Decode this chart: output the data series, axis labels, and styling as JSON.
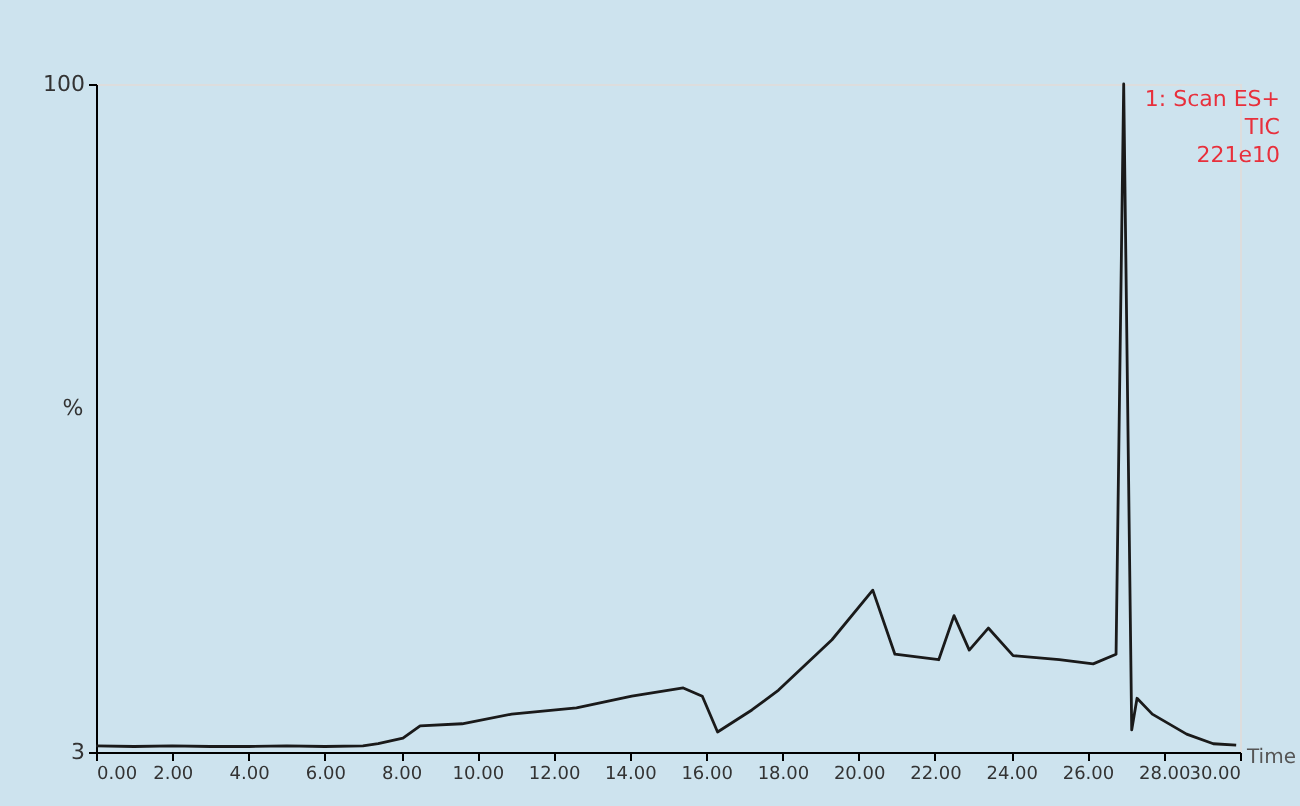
{
  "chart_data": {
    "type": "line",
    "xlabel": "Time",
    "ylabel": "%",
    "annotations": [
      "1: Scan ES+\nTIC\n221e10"
    ],
    "x": [
      0,
      1,
      2,
      3,
      4,
      5,
      6,
      7,
      7.4,
      8.05,
      8.5,
      9.6,
      10.9,
      12.6,
      14.05,
      15.4,
      15.9,
      16.3,
      17.2,
      17.9,
      19.3,
      20.37,
      20.95,
      22.1,
      22.5,
      22.9,
      23.4,
      24.05,
      25.26,
      26.15,
      26.75,
      26.95,
      27.16,
      27.3,
      27.7,
      28.6,
      29.3,
      29.9
    ],
    "series": [
      {
        "color": "#1a1a1a",
        "values": [
          3.9,
          3.8,
          3.9,
          3.8,
          3.8,
          3.9,
          3.8,
          3.9,
          4.2,
          5,
          6.8,
          7.1,
          8.5,
          9.4,
          11.1,
          12.3,
          11.1,
          5.9,
          9.1,
          12,
          19.3,
          26.5,
          17.2,
          16.4,
          22.8,
          17.8,
          21,
          17,
          16.4,
          15.8,
          17.2,
          100,
          6.2,
          10.8,
          8.5,
          5.6,
          4.2,
          4
        ]
      }
    ],
    "xlim": [
      0,
      30
    ],
    "ylim": [
      3,
      100
    ],
    "xticks": [
      {
        "value": 0,
        "label": "0.00"
      },
      {
        "value": 2,
        "label": "2.00"
      },
      {
        "value": 4,
        "label": "4.00"
      },
      {
        "value": 6,
        "label": "6.00"
      },
      {
        "value": 8,
        "label": "8.00"
      },
      {
        "value": 10,
        "label": "10.00"
      },
      {
        "value": 12,
        "label": "12.00"
      },
      {
        "value": 14,
        "label": "14.00"
      },
      {
        "value": 16,
        "label": "16.00"
      },
      {
        "value": 18,
        "label": "18.00"
      },
      {
        "value": 20,
        "label": "20.00"
      },
      {
        "value": 22,
        "label": "22.00"
      },
      {
        "value": 24,
        "label": "24.00"
      },
      {
        "value": 26,
        "label": "26.00"
      },
      {
        "value": 28,
        "label": "28.00"
      },
      {
        "value": 30,
        "label": "30.00"
      }
    ],
    "yticks": [
      3,
      100
    ],
    "grid": false,
    "marker": "none",
    "line_style": "solid"
  }
}
